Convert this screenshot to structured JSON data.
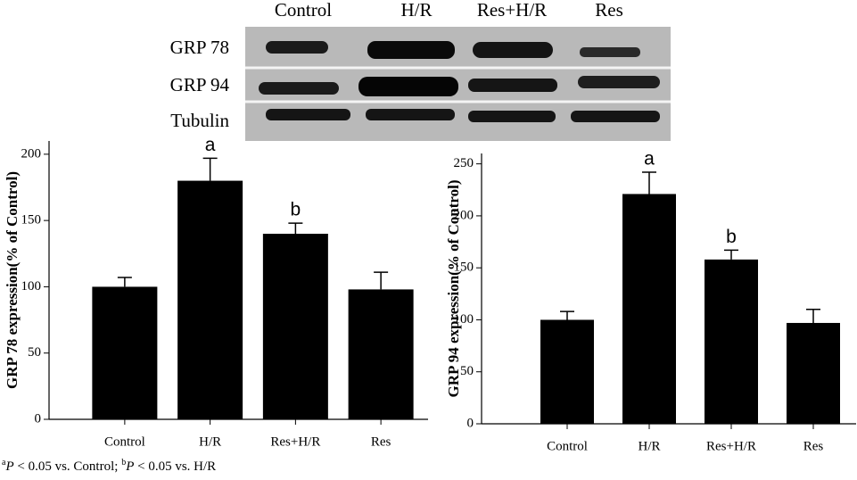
{
  "blot": {
    "lanes": [
      "Control",
      "H/R",
      "Res+H/R",
      "Res"
    ],
    "rows": [
      "GRP 78",
      "GRP 94",
      "Tubulin"
    ]
  },
  "chart_data": [
    {
      "type": "bar",
      "y_label": "GRP 78 expression(% of Control)",
      "categories": [
        "Control",
        "H/R",
        "Res+H/R",
        "Res"
      ],
      "values": [
        100,
        180,
        140,
        98
      ],
      "errors": [
        7,
        17,
        8,
        13
      ],
      "annotations": [
        null,
        "a",
        "b",
        null
      ],
      "color": "#000000",
      "ylim": [
        0,
        210
      ],
      "yticks": [
        0,
        50,
        100,
        150,
        200
      ]
    },
    {
      "type": "bar",
      "y_label": "GRP 94 expression(% of Control)",
      "categories": [
        "Control",
        "H/R",
        "Res+H/R",
        "Res"
      ],
      "values": [
        100,
        221,
        158,
        97
      ],
      "errors": [
        8,
        21,
        9,
        13
      ],
      "annotations": [
        null,
        "a",
        "b",
        null
      ],
      "color": "#000000",
      "ylim": [
        0,
        260
      ],
      "yticks": [
        0,
        50,
        100,
        150,
        200,
        250
      ]
    }
  ],
  "footnote": [
    "a",
    "P",
    " < 0.05 vs. Control; ",
    "b",
    "P",
    " < 0.05 vs. H/R"
  ]
}
